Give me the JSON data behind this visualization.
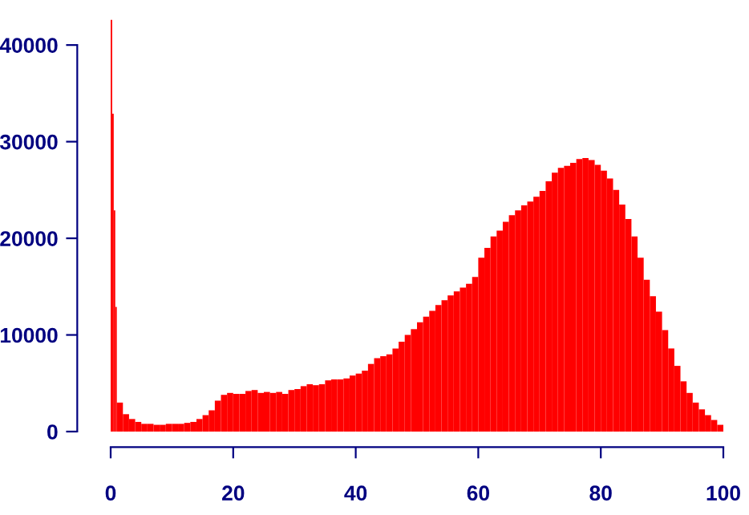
{
  "chart_data": {
    "type": "histogram",
    "color": "#ff0000",
    "bins": [
      0,
      0.25,
      0.5,
      0.75,
      1,
      2,
      3,
      4,
      5,
      6,
      7,
      8,
      9,
      10,
      11,
      12,
      13,
      14,
      15,
      16,
      17,
      18,
      19,
      20,
      21,
      22,
      23,
      24,
      25,
      26,
      27,
      28,
      29,
      30,
      31,
      32,
      33,
      34,
      35,
      36,
      37,
      38,
      39,
      40,
      41,
      42,
      43,
      44,
      45,
      46,
      47,
      48,
      49,
      50,
      51,
      52,
      53,
      54,
      55,
      56,
      57,
      58,
      59,
      60,
      61,
      62,
      63,
      64,
      65,
      66,
      67,
      68,
      69,
      70,
      71,
      72,
      73,
      74,
      75,
      76,
      77,
      78,
      79,
      80,
      81,
      82,
      83,
      84,
      85,
      86,
      87,
      88,
      89,
      90,
      91,
      92,
      93,
      94,
      95,
      96,
      97,
      98,
      99,
      100
    ],
    "values": [
      42600,
      32900,
      22900,
      12900,
      3000,
      1800,
      1300,
      1000,
      800,
      800,
      700,
      700,
      800,
      800,
      800,
      900,
      1000,
      1300,
      1700,
      2200,
      3200,
      3800,
      4000,
      3900,
      3900,
      4200,
      4300,
      4000,
      4100,
      4000,
      4100,
      3900,
      4300,
      4400,
      4700,
      4900,
      4800,
      4900,
      5300,
      5400,
      5400,
      5500,
      5800,
      6000,
      6300,
      7000,
      7600,
      7800,
      8000,
      8600,
      9300,
      10000,
      10600,
      11300,
      11900,
      12500,
      13100,
      13600,
      14100,
      14500,
      14900,
      15300,
      16000,
      18000,
      19000,
      20200,
      20800,
      21700,
      22400,
      22900,
      23400,
      23800,
      24300,
      24900,
      25900,
      26800,
      27300,
      27500,
      27800,
      28200,
      28300,
      28100,
      27600,
      27000,
      26200,
      25000,
      23500,
      22000,
      20200,
      18000,
      15700,
      14000,
      12400,
      10500,
      8600,
      6800,
      5200,
      4000,
      3000,
      2300,
      1700,
      1200,
      700
    ],
    "xlim": [
      0,
      100
    ],
    "xticks": [
      0,
      20,
      40,
      60,
      80,
      100
    ],
    "ylim": [
      0,
      43000
    ],
    "yticks": [
      0,
      10000,
      20000,
      30000,
      40000
    ],
    "grid": false
  }
}
